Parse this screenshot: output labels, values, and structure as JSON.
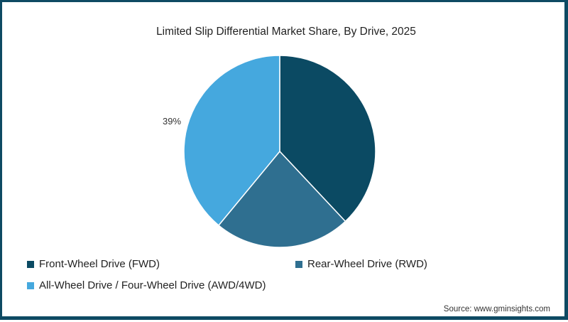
{
  "chart_data": {
    "type": "pie",
    "title": "Limited Slip Differential Market Share, By Drive, 2025",
    "categories": [
      "Front-Wheel Drive (FWD)",
      "Rear-Wheel Drive (RWD)",
      "All-Wheel Drive / Four-Wheel Drive (AWD/4WD)"
    ],
    "values": [
      38,
      23,
      39
    ],
    "unit": "%",
    "colors": [
      "#0b4a63",
      "#2f6f90",
      "#45a8de"
    ],
    "start_angle_deg": 0,
    "direction": "clockwise",
    "data_labels": [
      {
        "category": "All-Wheel Drive / Four-Wheel Drive (AWD/4WD)",
        "text": "39%"
      }
    ],
    "legend_position": "bottom-left"
  },
  "title": "Limited Slip Differential Market Share, By Drive, 2025",
  "labels": {
    "awd": "39%"
  },
  "legend": {
    "items": [
      {
        "label": "Front-Wheel Drive (FWD)",
        "color": "#0b4a63"
      },
      {
        "label": "Rear-Wheel Drive (RWD)",
        "color": "#2f6f90"
      },
      {
        "label": "All-Wheel Drive / Four-Wheel Drive (AWD/4WD)",
        "color": "#45a8de"
      }
    ]
  },
  "source": "Source: www.gminsights.com",
  "frame_color": "#0e4a63"
}
